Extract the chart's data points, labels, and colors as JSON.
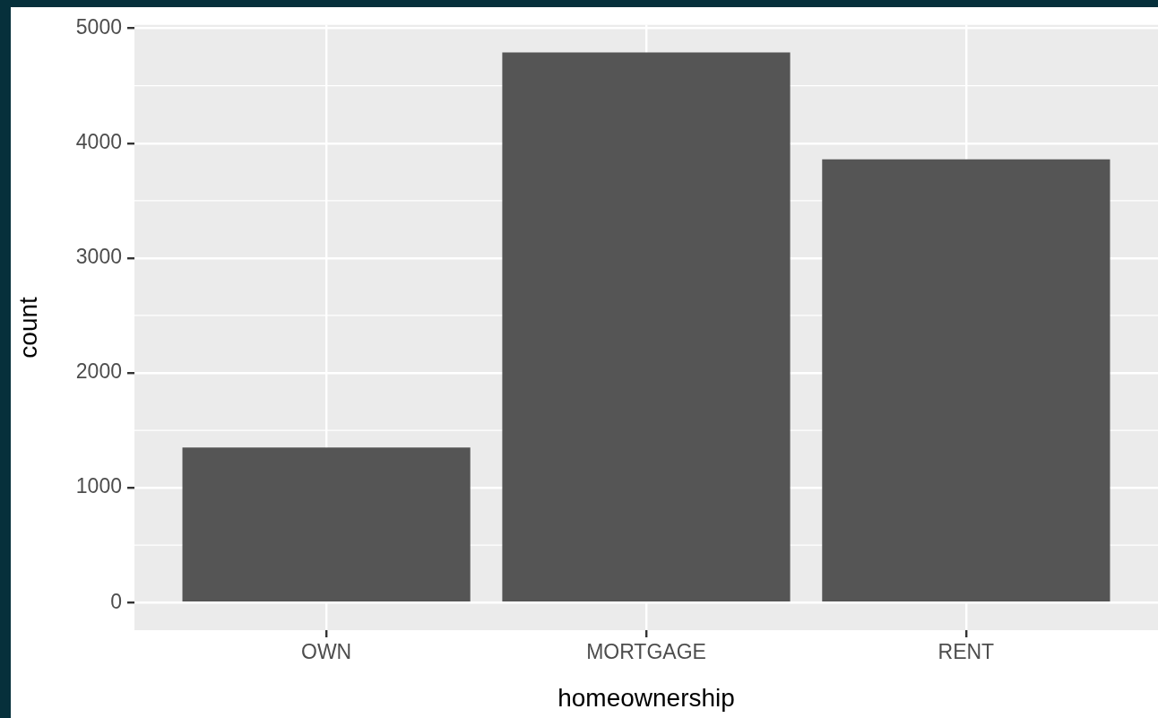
{
  "chart_data": {
    "type": "bar",
    "xlabel": "homeownership",
    "ylabel": "count",
    "categories": [
      "OWN",
      "MORTGAGE",
      "RENT"
    ],
    "values": [
      1350,
      4790,
      3860
    ],
    "color": "#555555",
    "ylim": [
      -240,
      5030
    ],
    "yticks": [
      0,
      1000,
      2000,
      3000,
      4000,
      5000
    ],
    "grid": true,
    "legend": false
  }
}
